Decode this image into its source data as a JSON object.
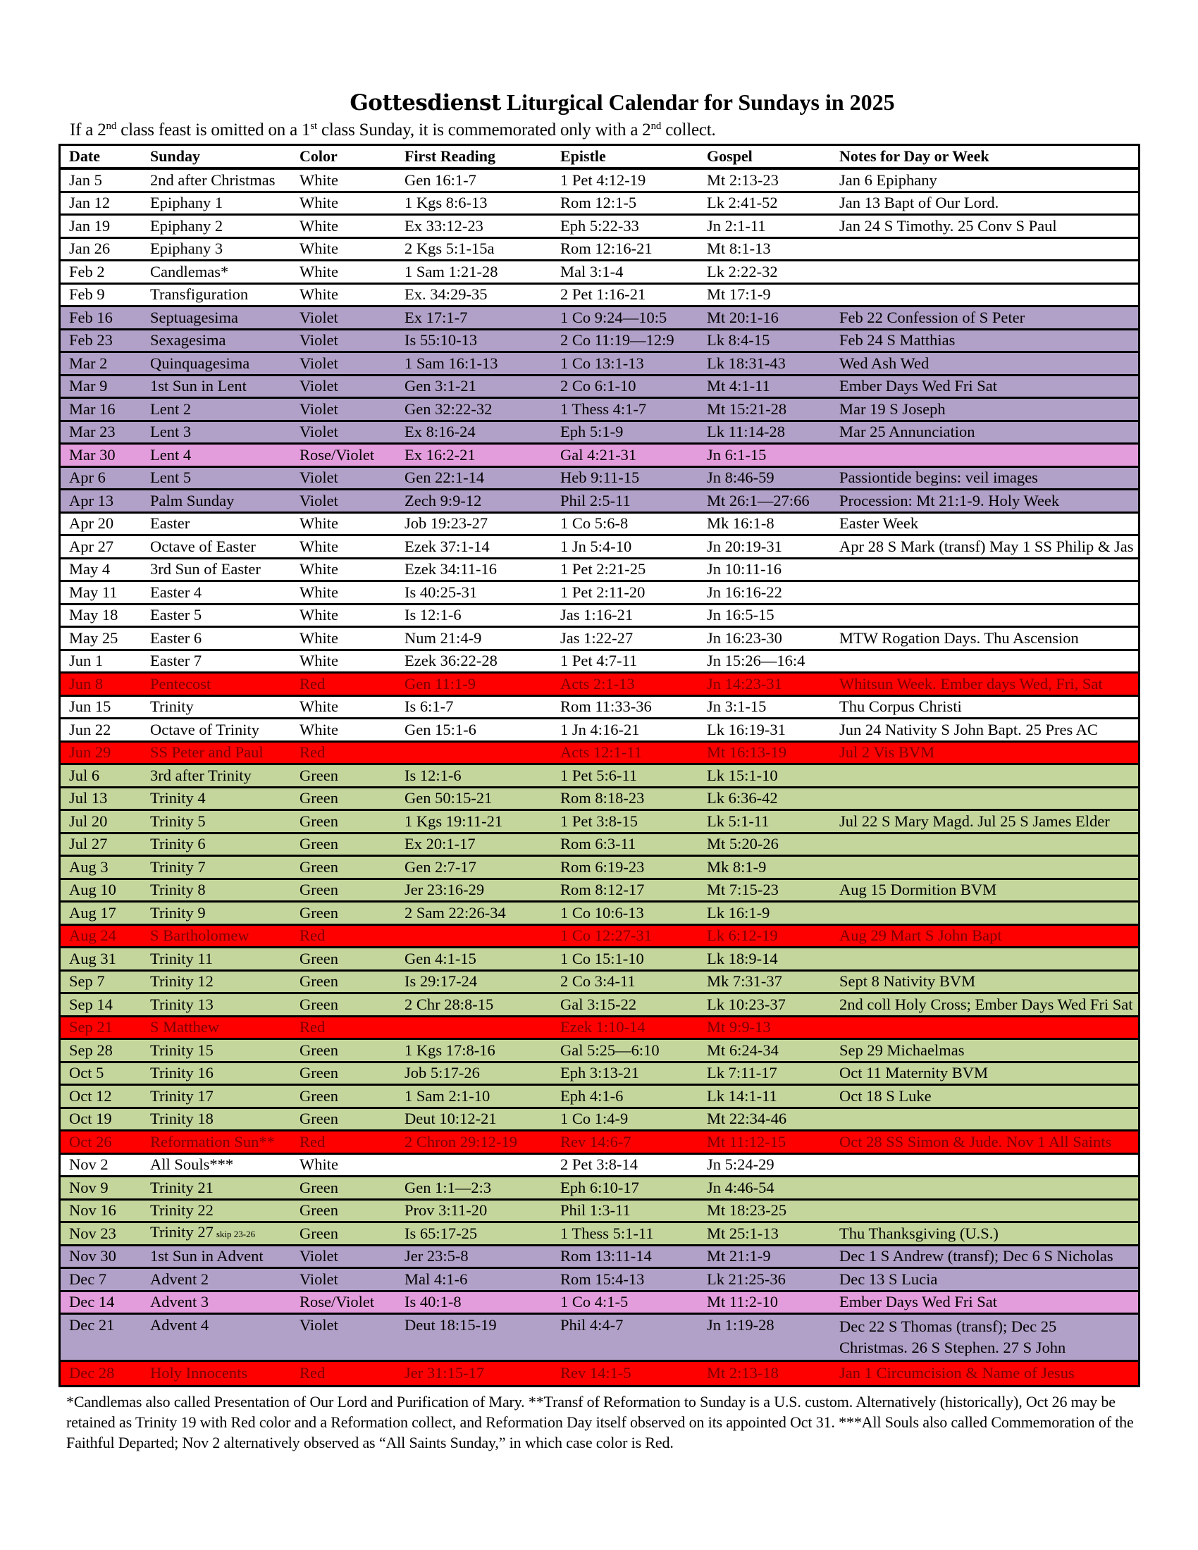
{
  "header": {
    "brand": "Gottesdienst",
    "title": "Liturgical Calendar for Sundays in 2025",
    "subtitle": "If a 2nd class feast is omitted on a 1st class Sunday, it is commemorated only with a 2nd collect."
  },
  "palette": {
    "White": {
      "bg": "#ffffff",
      "fg": "#000000"
    },
    "Violet": {
      "bg": "#b1a1c8",
      "fg": "#000000"
    },
    "Rose/Violet": {
      "bg": "#e49ddc",
      "fg": "#000000"
    },
    "Green": {
      "bg": "#c4d69c",
      "fg": "#000000"
    },
    "Red": {
      "bg": "#fe0000",
      "fg": "#7a0000"
    }
  },
  "table": {
    "columns": [
      "Date",
      "Sunday",
      "Color",
      "First Reading",
      "Epistle",
      "Gospel",
      "Notes for Day or Week"
    ],
    "rows": [
      [
        "Jan 5",
        "2nd after Christmas",
        "White",
        "Gen 16:1-7",
        "1 Pet 4:12-19",
        "Mt 2:13-23",
        "Jan 6 Epiphany"
      ],
      [
        "Jan 12",
        "Epiphany 1",
        "White",
        "1 Kgs 8:6-13",
        "Rom 12:1-5",
        "Lk 2:41-52",
        "Jan 13 Bapt of Our Lord."
      ],
      [
        "Jan 19",
        "Epiphany 2",
        "White",
        "Ex 33:12-23",
        "Eph 5:22-33",
        "Jn 2:1-11",
        "Jan 24 S Timothy. 25 Conv S Paul"
      ],
      [
        "Jan 26",
        "Epiphany 3",
        "White",
        "2 Kgs 5:1-15a",
        "Rom 12:16-21",
        "Mt 8:1-13",
        ""
      ],
      [
        "Feb 2",
        "Candlemas*",
        "White",
        "1 Sam 1:21-28",
        "Mal 3:1-4",
        "Lk 2:22-32",
        ""
      ],
      [
        "Feb 9",
        "Transfiguration",
        "White",
        "Ex. 34:29-35",
        "2 Pet 1:16-21",
        "Mt 17:1-9",
        ""
      ],
      [
        "Feb 16",
        "Septuagesima",
        "Violet",
        "Ex 17:1-7",
        "1 Co 9:24—10:5",
        "Mt 20:1-16",
        "Feb 22 Confession of S Peter"
      ],
      [
        "Feb 23",
        "Sexagesima",
        "Violet",
        "Is 55:10-13",
        "2 Co 11:19—12:9",
        "Lk 8:4-15",
        "Feb 24 S Matthias"
      ],
      [
        "Mar 2",
        "Quinquagesima",
        "Violet",
        "1 Sam 16:1-13",
        "1 Co 13:1-13",
        "Lk 18:31-43",
        "Wed Ash Wed"
      ],
      [
        "Mar 9",
        "1st Sun in Lent",
        "Violet",
        "Gen 3:1-21",
        "2 Co 6:1-10",
        "Mt 4:1-11",
        "Ember Days Wed Fri Sat"
      ],
      [
        "Mar 16",
        "Lent 2",
        "Violet",
        "Gen 32:22-32",
        "1 Thess 4:1-7",
        "Mt 15:21-28",
        "Mar 19 S Joseph"
      ],
      [
        "Mar 23",
        "Lent 3",
        "Violet",
        "Ex 8:16-24",
        "Eph 5:1-9",
        "Lk 11:14-28",
        "Mar 25 Annunciation"
      ],
      [
        "Mar 30",
        "Lent 4",
        "Rose/Violet",
        "Ex 16:2-21",
        "Gal 4:21-31",
        "Jn 6:1-15",
        ""
      ],
      [
        "Apr 6",
        "Lent 5",
        "Violet",
        "Gen 22:1-14",
        "Heb 9:11-15",
        "Jn 8:46-59",
        "Passiontide begins: veil images"
      ],
      [
        "Apr 13",
        "Palm Sunday",
        "Violet",
        "Zech 9:9-12",
        "Phil 2:5-11",
        "Mt 26:1—27:66",
        "Procession: Mt 21:1-9. Holy Week"
      ],
      [
        "Apr 20",
        "Easter",
        "White",
        "Job 19:23-27",
        "1 Co 5:6-8",
        "Mk 16:1-8",
        "Easter Week"
      ],
      [
        "Apr 27",
        "Octave of Easter",
        "White",
        "Ezek 37:1-14",
        "1 Jn 5:4-10",
        "Jn 20:19-31",
        "Apr 28 S Mark (transf) May 1 SS Philip & Jas"
      ],
      [
        "May 4",
        "3rd Sun of Easter",
        "White",
        "Ezek 34:11-16",
        "1 Pet 2:21-25",
        "Jn 10:11-16",
        ""
      ],
      [
        "May 11",
        "Easter 4",
        "White",
        "Is 40:25-31",
        "1 Pet 2:11-20",
        "Jn 16:16-22",
        ""
      ],
      [
        "May 18",
        "Easter 5",
        "White",
        "Is 12:1-6",
        "Jas 1:16-21",
        "Jn 16:5-15",
        ""
      ],
      [
        "May 25",
        "Easter 6",
        "White",
        "Num 21:4-9",
        "Jas 1:22-27",
        "Jn 16:23-30",
        "MTW Rogation Days. Thu Ascension"
      ],
      [
        "Jun 1",
        "Easter 7",
        "White",
        "Ezek 36:22-28",
        "1 Pet 4:7-11",
        "Jn 15:26—16:4",
        ""
      ],
      [
        "Jun 8",
        "Pentecost",
        "Red",
        "Gen 11:1-9",
        "Acts 2:1-13",
        "Jn 14:23-31",
        "Whitsun Week. Ember days Wed, Fri, Sat"
      ],
      [
        "Jun 15",
        "Trinity",
        "White",
        "Is 6:1-7",
        "Rom 11:33-36",
        "Jn 3:1-15",
        "Thu Corpus Christi"
      ],
      [
        "Jun 22",
        "Octave of Trinity",
        "White",
        "Gen 15:1-6",
        "1 Jn 4:16-21",
        "Lk 16:19-31",
        "Jun 24 Nativity S John Bapt. 25 Pres AC"
      ],
      [
        "Jun 29",
        "SS Peter and Paul",
        "Red",
        "",
        "Acts 12:1-11",
        "Mt 16:13-19",
        "Jul 2 Vis BVM"
      ],
      [
        "Jul 6",
        "3rd after Trinity",
        "Green",
        "Is 12:1-6",
        "1 Pet 5:6-11",
        "Lk 15:1-10",
        ""
      ],
      [
        "Jul 13",
        "Trinity 4",
        "Green",
        "Gen 50:15-21",
        "Rom 8:18-23",
        "Lk 6:36-42",
        ""
      ],
      [
        "Jul 20",
        "Trinity 5",
        "Green",
        "1 Kgs 19:11-21",
        "1 Pet 3:8-15",
        "Lk 5:1-11",
        "Jul 22 S Mary Magd. Jul 25 S James Elder"
      ],
      [
        "Jul 27",
        "Trinity 6",
        "Green",
        "Ex 20:1-17",
        "Rom 6:3-11",
        "Mt 5:20-26",
        ""
      ],
      [
        "Aug 3",
        "Trinity 7",
        "Green",
        "Gen 2:7-17",
        "Rom 6:19-23",
        "Mk 8:1-9",
        ""
      ],
      [
        "Aug 10",
        "Trinity 8",
        "Green",
        "Jer 23:16-29",
        "Rom 8:12-17",
        "Mt 7:15-23",
        "Aug 15 Dormition BVM"
      ],
      [
        "Aug 17",
        "Trinity 9",
        "Green",
        "2 Sam 22:26-34",
        "1 Co 10:6-13",
        "Lk 16:1-9",
        ""
      ],
      [
        "Aug 24",
        "S Bartholomew",
        "Red",
        "",
        "1 Co 12:27-31",
        "Lk 6:12-19",
        "Aug 29 Mart S John Bapt"
      ],
      [
        "Aug 31",
        "Trinity 11",
        "Green",
        "Gen 4:1-15",
        "1 Co 15:1-10",
        "Lk 18:9-14",
        ""
      ],
      [
        "Sep 7",
        "Trinity 12",
        "Green",
        "Is 29:17-24",
        "2 Co 3:4-11",
        "Mk 7:31-37",
        "Sept 8 Nativity BVM"
      ],
      [
        "Sep 14",
        "Trinity 13",
        "Green",
        "2 Chr 28:8-15",
        "Gal 3:15-22",
        "Lk 10:23-37",
        "2nd coll Holy Cross; Ember Days Wed Fri Sat"
      ],
      [
        "Sep 21",
        "S Matthew",
        "Red",
        "",
        "Ezek 1:10-14",
        "Mt 9:9-13",
        ""
      ],
      [
        "Sep 28",
        "Trinity 15",
        "Green",
        "1 Kgs 17:8-16",
        "Gal 5:25—6:10",
        "Mt 6:24-34",
        "Sep 29 Michaelmas"
      ],
      [
        "Oct 5",
        "Trinity 16",
        "Green",
        "Job 5:17-26",
        "Eph 3:13-21",
        "Lk 7:11-17",
        "Oct 11 Maternity BVM"
      ],
      [
        "Oct 12",
        "Trinity 17",
        "Green",
        "1 Sam 2:1-10",
        "Eph 4:1-6",
        "Lk 14:1-11",
        "Oct 18 S Luke"
      ],
      [
        "Oct 19",
        "Trinity 18",
        "Green",
        "Deut 10:12-21",
        "1 Co 1:4-9",
        "Mt 22:34-46",
        ""
      ],
      [
        "Oct 26",
        "Reformation Sun**",
        "Red",
        "2 Chron 29:12-19",
        "Rev 14:6-7",
        "Mt 11:12-15",
        "Oct 28 SS Simon & Jude. Nov 1 All Saints"
      ],
      [
        "Nov 2",
        "All Souls***",
        "White",
        "",
        "2 Pet 3:8-14",
        "Jn 5:24-29",
        ""
      ],
      [
        "Nov 9",
        "Trinity 21",
        "Green",
        "Gen 1:1—2:3",
        "Eph 6:10-17",
        "Jn 4:46-54",
        ""
      ],
      [
        "Nov 16",
        "Trinity 22",
        "Green",
        "Prov 3:11-20",
        "Phil 1:3-11",
        "Mt 18:23-25",
        ""
      ],
      [
        "Nov 23",
        "Trinity 27",
        "Green",
        "Is 65:17-25",
        "1 Thess 5:1-11",
        "Mt 25:1-13",
        "Thu Thanksgiving (U.S.)"
      ],
      [
        "Nov 30",
        "1st Sun in Advent",
        "Violet",
        "Jer 23:5-8",
        "Rom 13:11-14",
        "Mt 21:1-9",
        "Dec 1 S Andrew (transf); Dec 6 S Nicholas"
      ],
      [
        "Dec 7",
        "Advent 2",
        "Violet",
        "Mal 4:1-6",
        "Rom 15:4-13",
        "Lk 21:25-36",
        "Dec 13 S Lucia"
      ],
      [
        "Dec 14",
        "Advent 3",
        "Rose/Violet",
        "Is 40:1-8",
        "1 Co 4:1-5",
        "Mt 11:2-10",
        "Ember Days Wed Fri Sat"
      ],
      [
        "Dec 21",
        "Advent 4",
        "Violet",
        "Deut 18:15-19",
        "Phil 4:4-7",
        "Jn 1:19-28",
        "Dec 22 S Thomas (transf); Dec 25 Christmas. 26 S Stephen. 27 S John"
      ],
      [
        "Dec 28",
        "Holy Innocents",
        "Red",
        "Jer 31:15-17",
        "Rev 14:1-5",
        "Mt 2:13-18",
        "Jan 1 Circumcision & Name of Jesus"
      ]
    ],
    "sunday_asides": {
      "Nov 23": "skip 23-26"
    }
  },
  "footnote": "*Candlemas also called Presentation of Our Lord and Purification of Mary. **Transf of Reformation to Sunday is a U.S. custom. Alternatively (historically), Oct 26 may be retained as Trinity 19 with Red color and a Reformation collect, and Reformation Day itself observed on its appointed Oct 31. ***All Souls also called Commemoration of the Faithful Departed; Nov 2 alternatively observed as “All Saints Sunday,” in which case color is Red."
}
